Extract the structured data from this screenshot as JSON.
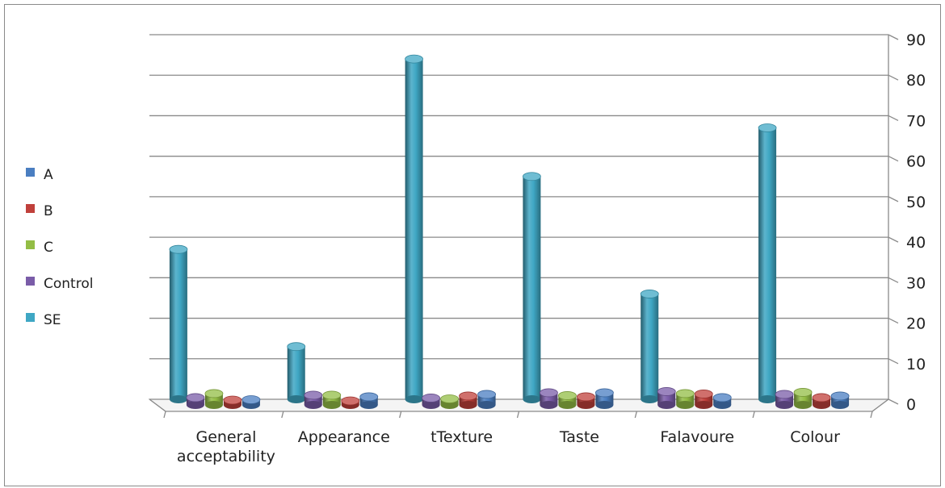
{
  "chart_data": {
    "type": "bar",
    "title": "",
    "xlabel": "",
    "ylabel": "",
    "ylim": [
      0,
      90
    ],
    "yticks": [
      0,
      10,
      20,
      30,
      40,
      50,
      60,
      70,
      80,
      90
    ],
    "grid": true,
    "legend_position": "left",
    "categories": [
      [
        "General",
        "acceptability"
      ],
      [
        "Appearance"
      ],
      [
        "tTexture"
      ],
      [
        "Taste"
      ],
      [
        "Falavoure"
      ],
      [
        "Colour"
      ]
    ],
    "series": [
      {
        "name": "SE",
        "color": "#3fa7c4",
        "values": [
          37,
          13,
          84,
          55,
          26,
          67
        ]
      },
      {
        "name": "Control",
        "color": "#7a5ca8",
        "values": [
          1.8,
          2.4,
          1.7,
          3.0,
          3.3,
          2.6
        ]
      },
      {
        "name": "C",
        "color": "#93bd45",
        "values": [
          2.8,
          2.4,
          1.5,
          2.3,
          2.8,
          3.1
        ]
      },
      {
        "name": "B",
        "color": "#c0403b",
        "values": [
          1.2,
          1.0,
          2.2,
          2.0,
          2.7,
          1.8
        ]
      },
      {
        "name": "A",
        "color": "#4a7ec1",
        "values": [
          1.3,
          2.0,
          2.6,
          3.0,
          1.8,
          2.2
        ]
      }
    ],
    "legend": [
      "A",
      "B",
      "C",
      "Control",
      "SE"
    ]
  }
}
